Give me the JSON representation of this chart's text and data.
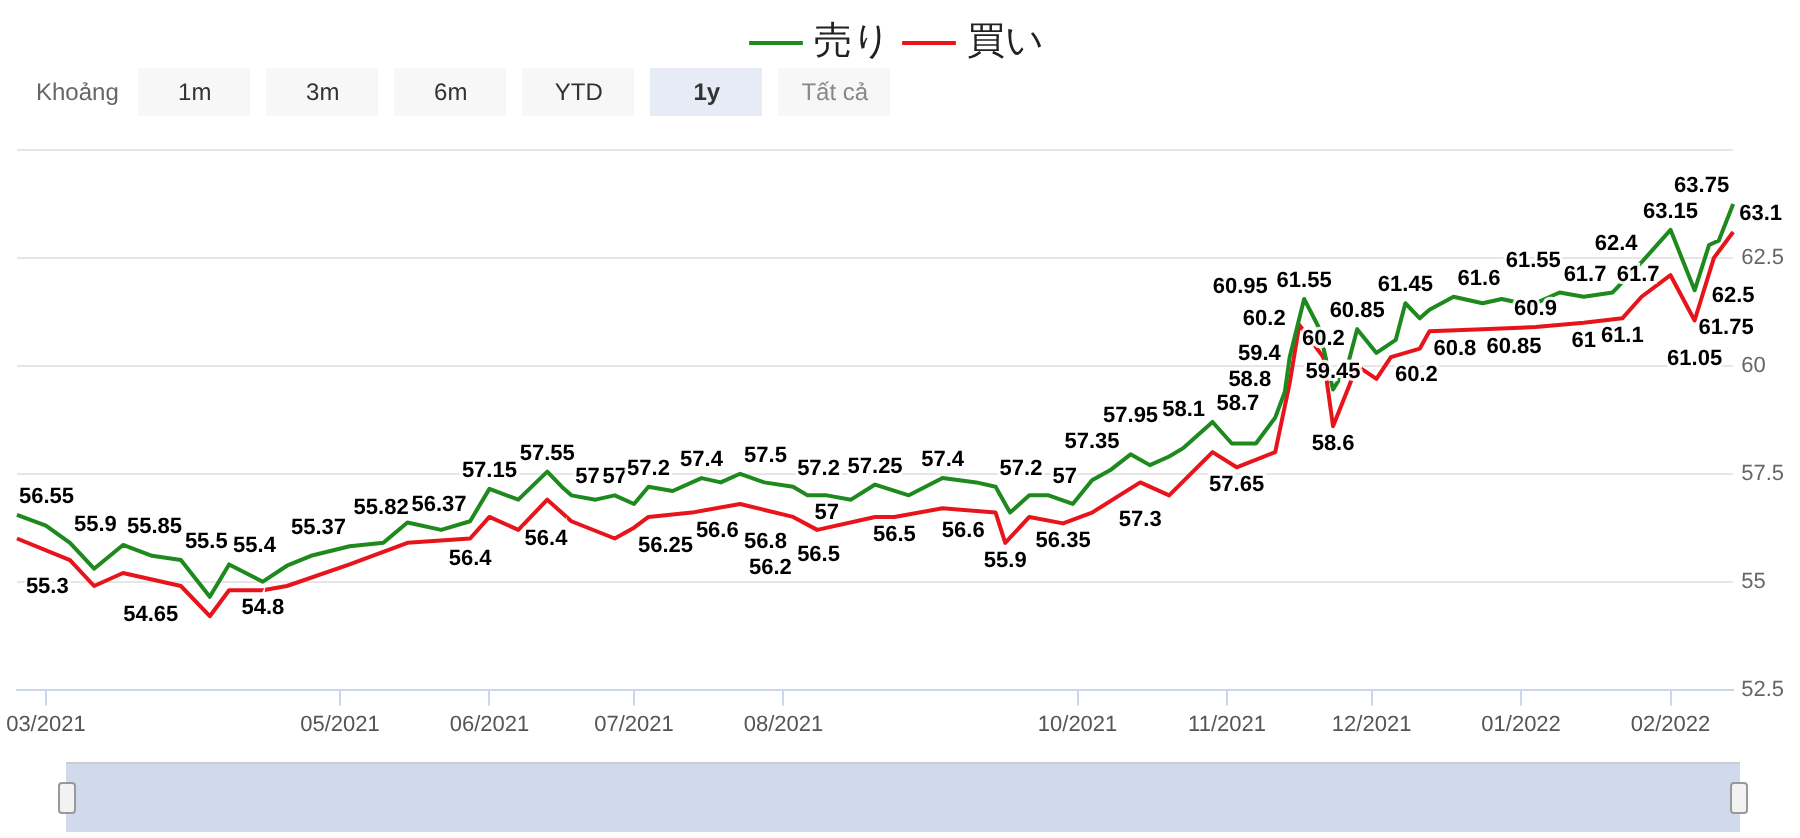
{
  "chart_data": {
    "type": "line",
    "legend": "top",
    "grid": "y",
    "marker": "none",
    "xlim": [
      "2021-02-23",
      "2022-02-14"
    ],
    "xticks": [
      {
        "value": "2021-03-01",
        "label": "03/2021"
      },
      {
        "value": "2021-05-01",
        "label": "05/2021"
      },
      {
        "value": "2021-06-01",
        "label": "06/2021"
      },
      {
        "value": "2021-07-01",
        "label": "07/2021"
      },
      {
        "value": "2021-08-01",
        "label": "08/2021"
      },
      {
        "value": "2021-10-01",
        "label": "10/2021"
      },
      {
        "value": "2021-11-01",
        "label": "11/2021"
      },
      {
        "value": "2021-12-01",
        "label": "12/2021"
      },
      {
        "value": "2022-01-01",
        "label": "01/2022"
      },
      {
        "value": "2022-02-01",
        "label": "02/2022"
      }
    ],
    "ylim": [
      52.5,
      65
    ],
    "yticks": [
      52.5,
      55,
      57.5,
      60,
      62.5,
      {
        "value": 65,
        "label": null
      }
    ],
    "annotations": [
      "Khoảng",
      "1m",
      "3m",
      "6m",
      "YTD",
      "1y",
      "Tất cả"
    ],
    "series": [
      {
        "name": "売り",
        "color": "#1e8a1e",
        "x": [
          "2021-02-23",
          "2021-03-01",
          "2021-03-06",
          "2021-03-11",
          "2021-03-17",
          "2021-03-23",
          "2021-03-29",
          "2021-04-04",
          "2021-04-08",
          "2021-04-15",
          "2021-04-20",
          "2021-04-25",
          "2021-05-03",
          "2021-05-10",
          "2021-05-15",
          "2021-05-22",
          "2021-05-28",
          "2021-06-01",
          "2021-06-07",
          "2021-06-13",
          "2021-06-16",
          "2021-06-18",
          "2021-06-23",
          "2021-06-27",
          "2021-07-01",
          "2021-07-04",
          "2021-07-09",
          "2021-07-15",
          "2021-07-19",
          "2021-07-23",
          "2021-07-28",
          "2021-08-03",
          "2021-08-06",
          "2021-08-10",
          "2021-08-15",
          "2021-08-20",
          "2021-08-27",
          "2021-09-03",
          "2021-09-10",
          "2021-09-14",
          "2021-09-17",
          "2021-09-21",
          "2021-09-25",
          "2021-09-30",
          "2021-10-04",
          "2021-10-08",
          "2021-10-12",
          "2021-10-16",
          "2021-10-20",
          "2021-10-23",
          "2021-10-29",
          "2021-11-02",
          "2021-11-07",
          "2021-11-11",
          "2021-11-13",
          "2021-11-14",
          "2021-11-17",
          "2021-11-20",
          "2021-11-23",
          "2021-11-26",
          "2021-11-28",
          "2021-12-02",
          "2021-12-06",
          "2021-12-08",
          "2021-12-11",
          "2021-12-13",
          "2021-12-18",
          "2021-12-24",
          "2021-12-28",
          "2022-01-03",
          "2022-01-09",
          "2022-01-14",
          "2022-01-20",
          "2022-01-26",
          "2022-02-01",
          "2022-02-06",
          "2022-02-09",
          "2022-02-11",
          "2022-02-14"
        ],
        "values": [
          56.55,
          56.3,
          55.9,
          55.3,
          55.85,
          55.6,
          55.5,
          54.65,
          55.4,
          55.0,
          55.37,
          55.6,
          55.82,
          55.9,
          56.37,
          56.2,
          56.4,
          57.15,
          56.9,
          57.55,
          57.2,
          57,
          56.9,
          57,
          56.8,
          57.2,
          57.1,
          57.4,
          57.3,
          57.5,
          57.3,
          57.2,
          57.0,
          57,
          56.9,
          57.25,
          57.0,
          57.4,
          57.3,
          57.2,
          56.6,
          57.0,
          57,
          56.8,
          57.35,
          57.6,
          57.95,
          57.7,
          57.9,
          58.1,
          58.7,
          58.2,
          58.2,
          58.8,
          59.4,
          60.2,
          61.55,
          60.9,
          59.45,
          60.0,
          60.85,
          60.3,
          60.6,
          61.45,
          61.1,
          61.3,
          61.6,
          61.45,
          61.55,
          61.4,
          61.7,
          61.6,
          61.7,
          62.4,
          63.15,
          61.75,
          62.8,
          62.9,
          63.75
        ],
        "value_labels": [
          "56.55",
          null,
          "55.9",
          "55.3",
          "55.85",
          null,
          "55.5",
          "54.65",
          "55.4",
          null,
          "55.37",
          null,
          "55.82",
          null,
          "56.37",
          null,
          "56.4",
          "57.15",
          null,
          "57.55",
          null,
          "57",
          null,
          "57",
          null,
          "57.2",
          null,
          "57.4",
          null,
          "57.5",
          null,
          "57.2",
          null,
          "57",
          null,
          "57.25",
          null,
          "57.4",
          null,
          "57.2",
          "56.6",
          null,
          "57",
          null,
          "57.35",
          null,
          "57.95",
          null,
          null,
          "58.1",
          "58.7",
          null,
          null,
          "58.8",
          "59.4",
          "60.2",
          "61.55",
          null,
          "59.45",
          null,
          "60.85",
          null,
          null,
          "61.45",
          null,
          null,
          "61.6",
          null,
          "61.55",
          null,
          "61.7",
          null,
          "61.7",
          "62.4",
          "63.15",
          "61.75",
          null,
          null,
          "63.75"
        ]
      },
      {
        "name": "買い",
        "color": "#e8141c",
        "x": [
          "2021-02-23",
          "2021-03-06",
          "2021-03-11",
          "2021-03-17",
          "2021-03-29",
          "2021-04-04",
          "2021-04-08",
          "2021-04-15",
          "2021-04-20",
          "2021-05-03",
          "2021-05-15",
          "2021-05-28",
          "2021-06-01",
          "2021-06-07",
          "2021-06-13",
          "2021-06-18",
          "2021-06-27",
          "2021-07-01",
          "2021-07-04",
          "2021-07-13",
          "2021-07-23",
          "2021-08-03",
          "2021-08-08",
          "2021-08-20",
          "2021-08-24",
          "2021-09-03",
          "2021-09-14",
          "2021-09-16",
          "2021-09-21",
          "2021-09-28",
          "2021-10-04",
          "2021-10-14",
          "2021-10-20",
          "2021-10-29",
          "2021-11-03",
          "2021-11-11",
          "2021-11-14",
          "2021-11-16",
          "2021-11-21",
          "2021-11-23",
          "2021-11-28",
          "2021-12-02",
          "2021-12-05",
          "2021-12-11",
          "2021-12-13",
          "2021-12-24",
          "2022-01-04",
          "2022-01-14",
          "2022-01-22",
          "2022-01-26",
          "2022-02-01",
          "2022-02-06",
          "2022-02-10",
          "2022-02-14"
        ],
        "values": [
          56.0,
          55.5,
          54.9,
          55.2,
          54.9,
          54.2,
          54.8,
          54.8,
          54.9,
          55.4,
          55.9,
          56.0,
          56.5,
          56.2,
          56.9,
          56.4,
          56.0,
          56.25,
          56.5,
          56.6,
          56.8,
          56.5,
          56.2,
          56.5,
          56.5,
          56.7,
          56.6,
          55.9,
          56.5,
          56.35,
          56.6,
          57.3,
          57.0,
          58.0,
          57.65,
          58.0,
          59.6,
          60.95,
          60.2,
          58.6,
          60.0,
          59.7,
          60.2,
          60.4,
          60.8,
          60.85,
          60.9,
          61,
          61.1,
          61.6,
          62.1,
          61.05,
          62.5,
          63.1
        ],
        "value_labels": [
          null,
          null,
          null,
          null,
          null,
          null,
          null,
          "54.8",
          null,
          null,
          null,
          null,
          null,
          null,
          null,
          "56.4",
          null,
          "56.25",
          null,
          "56.6",
          "56.8",
          "56.5",
          "56.2",
          null,
          "56.5",
          null,
          null,
          "55.9",
          null,
          "56.35",
          null,
          "57.3",
          null,
          null,
          "57.65",
          null,
          null,
          "60.95",
          "60.2",
          "58.6",
          null,
          null,
          "60.2",
          null,
          "60.8",
          "60.85",
          "60.9",
          "61",
          "61.1",
          null,
          null,
          "61.05",
          "62.5",
          "63.1"
        ]
      }
    ]
  }
}
